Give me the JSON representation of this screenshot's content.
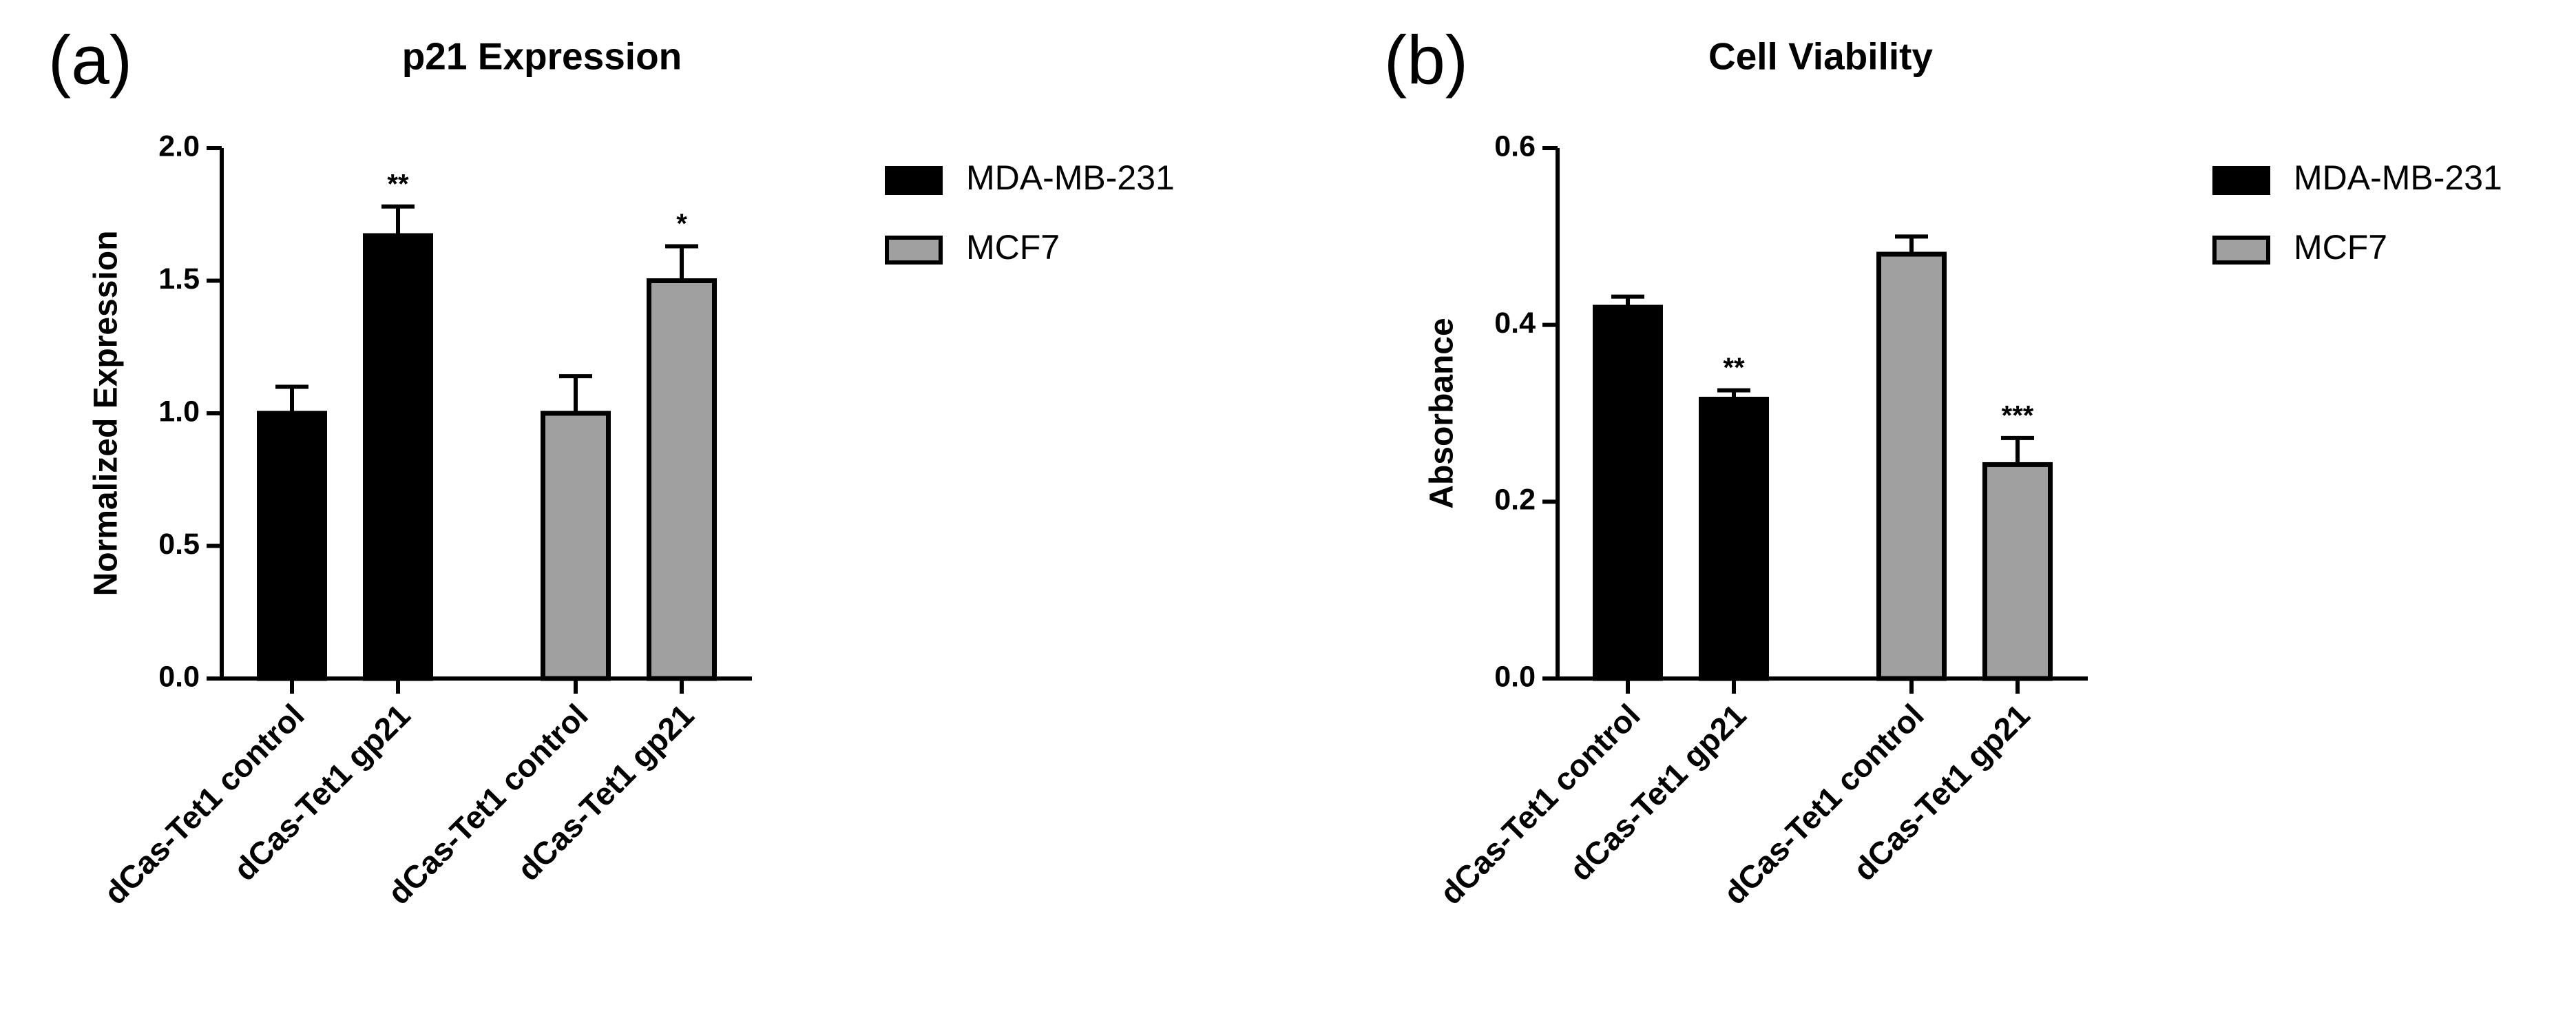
{
  "chart_data": [
    {
      "type": "bar",
      "panel_label": "(a)",
      "title": "p21 Expression",
      "ylabel": "Normalized Expression",
      "categories": [
        "dCas-Tet1 control",
        "dCas-Tet1 gp21",
        "dCas-Tet1 control",
        "dCas-Tet1 gp21"
      ],
      "series": [
        {
          "name": "MDA-MB-231",
          "color": "#000000",
          "values": [
            1.0,
            1.67,
            null,
            null
          ],
          "errors": [
            0.1,
            0.11,
            null,
            null
          ]
        },
        {
          "name": "MCF7",
          "color": "#a0a0a0",
          "values": [
            null,
            null,
            1.0,
            1.5
          ],
          "errors": [
            null,
            null,
            0.14,
            0.13
          ]
        }
      ],
      "annotations": [
        null,
        "**",
        null,
        "*"
      ],
      "ylim": [
        0,
        2
      ],
      "yticks": [
        {
          "value": 0,
          "label": "0.0"
        },
        {
          "value": 0.5,
          "label": "0.5"
        },
        {
          "value": 1,
          "label": "1.0"
        },
        {
          "value": 1.5,
          "label": "1.5"
        },
        {
          "value": 2,
          "label": "2.0"
        }
      ],
      "legend": "right"
    },
    {
      "type": "bar",
      "panel_label": "(b)",
      "title": "Cell Viability",
      "ylabel": "Absorbance",
      "categories": [
        "dCas-Tet1 control",
        "dCas-Tet1 gp21",
        "dCas-Tet1 control",
        "dCas-Tet1 gp21"
      ],
      "series": [
        {
          "name": "MDA-MB-231",
          "color": "#000000",
          "values": [
            0.42,
            0.316,
            null,
            null
          ],
          "errors": [
            0.012,
            0.01,
            null,
            null
          ]
        },
        {
          "name": "MCF7",
          "color": "#a0a0a0",
          "values": [
            null,
            null,
            0.48,
            0.242
          ],
          "errors": [
            null,
            null,
            0.02,
            0.03
          ]
        }
      ],
      "annotations": [
        null,
        "**",
        null,
        "***"
      ],
      "ylim": [
        0,
        0.6
      ],
      "yticks": [
        {
          "value": 0,
          "label": "0.0"
        },
        {
          "value": 0.2,
          "label": "0.2"
        },
        {
          "value": 0.4,
          "label": "0.4"
        },
        {
          "value": 0.6,
          "label": "0.6"
        }
      ],
      "legend": "right"
    }
  ]
}
